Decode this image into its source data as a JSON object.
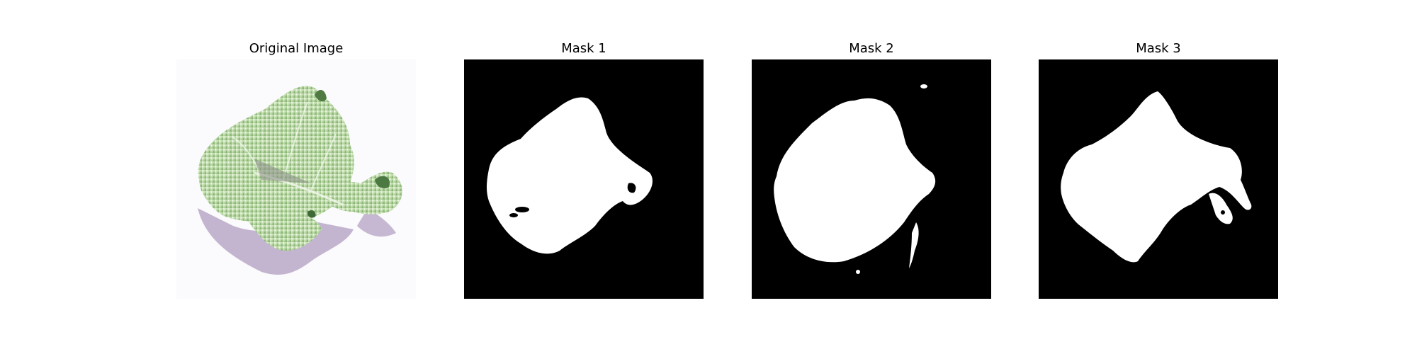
{
  "panels": [
    {
      "title": "Original Image"
    },
    {
      "title": "Mask 1"
    },
    {
      "title": "Mask 2"
    },
    {
      "title": "Mask 3"
    }
  ],
  "colors": {
    "mask_background": "#000000",
    "mask_foreground": "#ffffff",
    "leaf_light": "#dfeed2",
    "leaf_mid": "#a9cd95",
    "leaf_dark": "#6f9a5e",
    "shadow": "#b8a9c4",
    "photo_background": "#f7f6f9"
  }
}
